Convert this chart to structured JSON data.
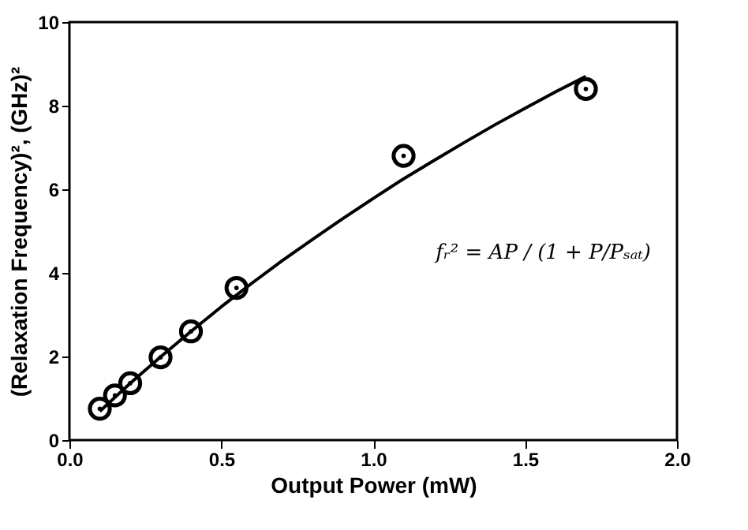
{
  "chart_data": {
    "type": "scatter",
    "xlabel": "Output Power (mW)",
    "ylabel": "(Relaxation Frequency)², (GHz)²",
    "xlim": [
      0,
      2
    ],
    "xticks": [
      {
        "value": 0,
        "label": "0.0"
      },
      0.5,
      {
        "value": 1,
        "label": "1.0"
      },
      1.5,
      {
        "value": 2,
        "label": "2.0"
      }
    ],
    "ylim": [
      0,
      10
    ],
    "yticks": [
      0,
      2,
      4,
      6,
      8,
      10
    ],
    "grid": false,
    "series": [
      {
        "color": "#000000",
        "marker": "circle",
        "x": [
          0.1,
          0.15,
          0.2,
          0.3,
          0.4,
          0.55,
          1.1,
          1.7
        ],
        "values": [
          0.75,
          1.07,
          1.36,
          1.98,
          2.6,
          3.64,
          6.8,
          8.4
        ]
      },
      {
        "type": "line",
        "color": "#000000",
        "line_style": "solid",
        "x": [
          0.1,
          0.2,
          0.3,
          0.4,
          0.5,
          0.6,
          0.7,
          0.8,
          0.9,
          1.0,
          1.1,
          1.2,
          1.3,
          1.4,
          1.5,
          1.6,
          1.7
        ],
        "values": [
          0.69,
          1.36,
          1.99,
          2.6,
          3.19,
          3.75,
          4.29,
          4.8,
          5.3,
          5.78,
          6.25,
          6.69,
          7.12,
          7.54,
          7.94,
          8.33,
          8.7
        ]
      }
    ],
    "annotations": [
      "fᵣ² = AP / (1 + P/Pₛₐₜ)"
    ]
  }
}
